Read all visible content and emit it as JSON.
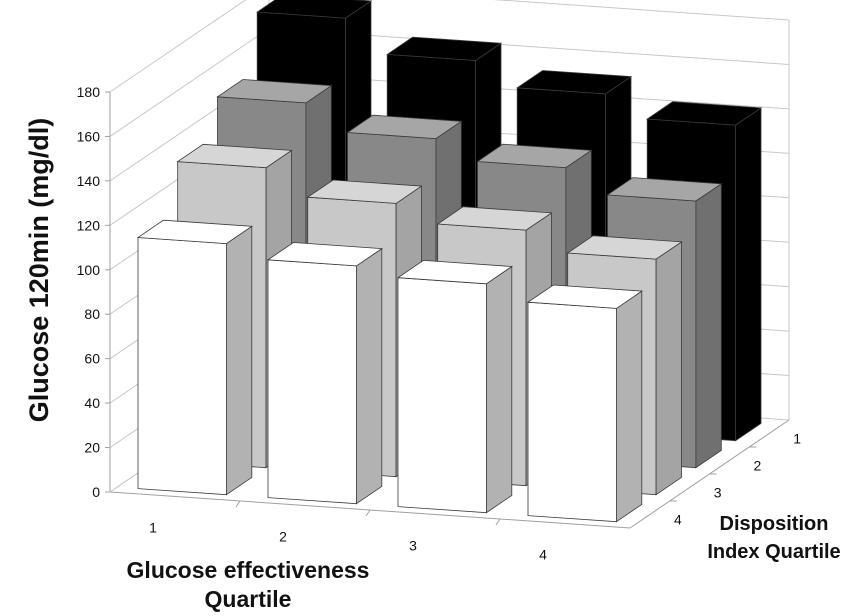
{
  "chart_data": {
    "type": "bar",
    "subtype": "3d-column",
    "ylabel": "Glucose 120min (mg/dl)",
    "xlabel": "Glucose effectiveness Quartile",
    "zlabel": "Disposition Index Quartile",
    "ylim": [
      0,
      180
    ],
    "yticks": [
      "0",
      "20",
      "40",
      "60",
      "80",
      "100",
      "120",
      "140",
      "160",
      "180"
    ],
    "categories": [
      "1",
      "2",
      "3",
      "4"
    ],
    "depth_categories": [
      "1",
      "2",
      "3",
      "4"
    ],
    "grid": true,
    "legend": "none",
    "series": [
      {
        "depth": "1",
        "color": "#000000",
        "values": [
          178,
          163,
          152,
          142
        ]
      },
      {
        "depth": "2",
        "color": "#888888",
        "values": [
          152,
          140,
          131,
          120
        ]
      },
      {
        "depth": "3",
        "color": "#c8c8c8",
        "values": [
          135,
          123,
          115,
          106
        ]
      },
      {
        "depth": "4",
        "color": "#ffffff",
        "values": [
          113,
          107,
          103,
          96
        ]
      }
    ]
  }
}
